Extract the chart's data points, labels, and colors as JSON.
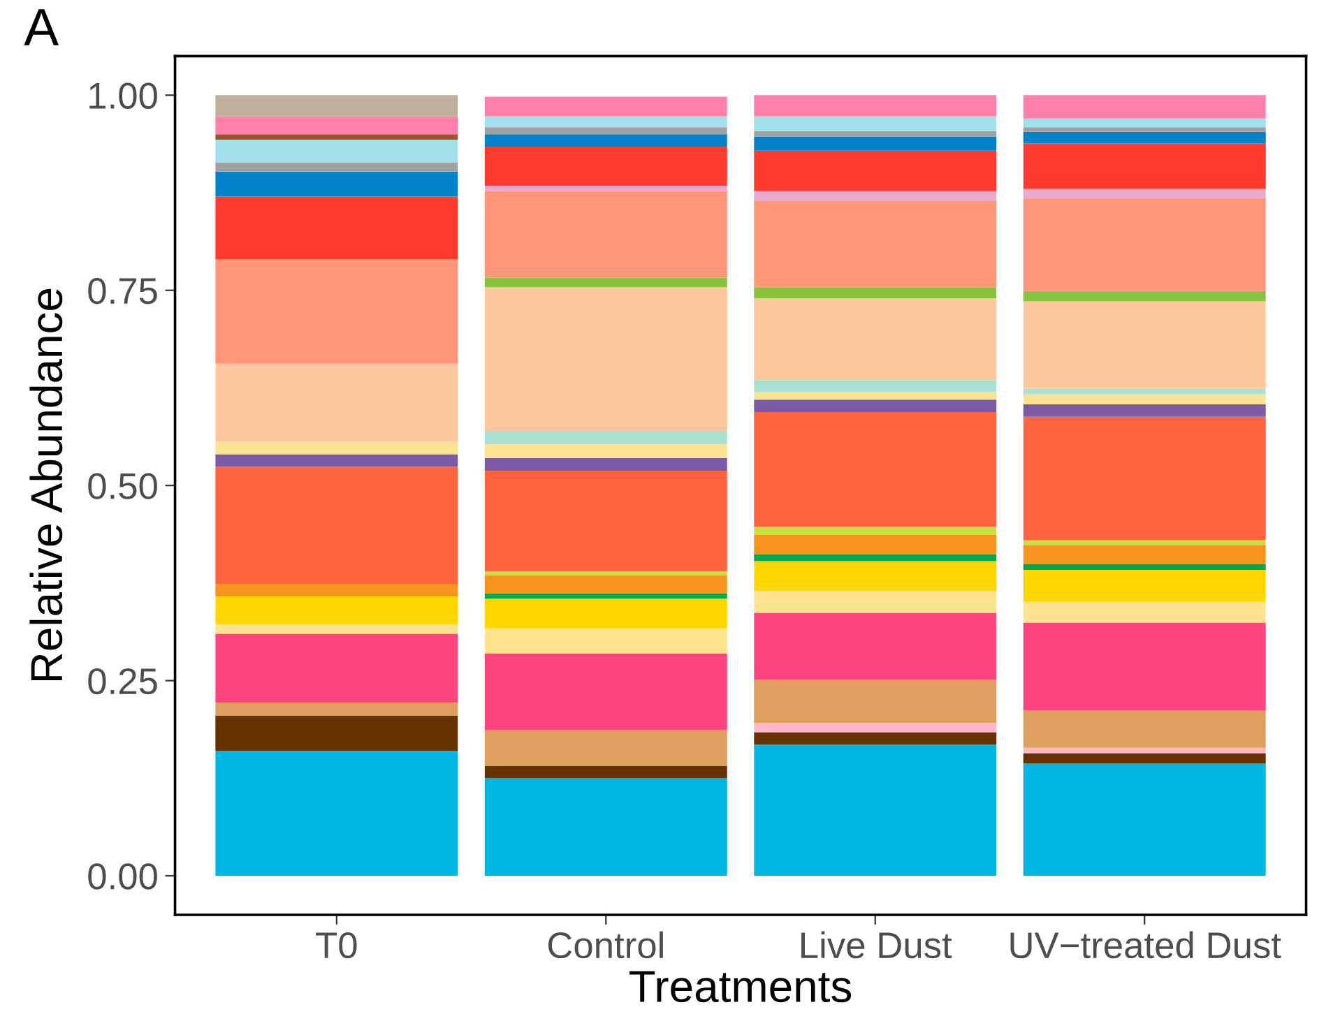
{
  "chart_data": {
    "type": "bar",
    "stacked": true,
    "title": "A",
    "xlabel": "Treatments",
    "ylabel": "Relative Abundance",
    "categories": [
      "T0",
      "Control",
      "Live Dust",
      "UV−treated Dust"
    ],
    "ylim": [
      -0.05,
      1.05
    ],
    "yticks": [
      {
        "value": 0,
        "label": "0.00"
      },
      {
        "value": 0.25,
        "label": "0.25"
      },
      {
        "value": 0.5,
        "label": "0.50"
      },
      {
        "value": 0.75,
        "label": "0.75"
      },
      {
        "value": 1,
        "label": "1.00"
      }
    ],
    "grid": false,
    "legend": false,
    "series": [
      {
        "color": "#00b5e2",
        "values": [
          0.16,
          0.125,
          0.168,
          0.144
        ]
      },
      {
        "color": "#663300",
        "values": [
          0.045,
          0.016,
          0.016,
          0.013
        ]
      },
      {
        "color": "#ffb6c8",
        "values": [
          null,
          null,
          0.012,
          0.007
        ]
      },
      {
        "color": "#dd9e5e",
        "values": [
          0.017,
          0.046,
          0.055,
          0.048
        ]
      },
      {
        "color": "#ff4580",
        "values": [
          0.088,
          0.098,
          0.086,
          0.112
        ]
      },
      {
        "color": "#fde48f",
        "values": [
          0.012,
          0.032,
          0.028,
          0.027
        ]
      },
      {
        "color": "#ffd700",
        "values": [
          0.036,
          0.038,
          0.038,
          0.041
        ]
      },
      {
        "color": "#00a651",
        "values": [
          null,
          0.007,
          0.009,
          0.007
        ]
      },
      {
        "color": "#f7941d",
        "values": [
          0.016,
          0.023,
          0.025,
          0.025
        ]
      },
      {
        "color": "#c8e03c",
        "values": [
          null,
          0.005,
          0.01,
          0.006
        ]
      },
      {
        "color": "#ff6340",
        "values": [
          0.15,
          0.129,
          0.147,
          0.158
        ]
      },
      {
        "color": "#7b5aa6",
        "values": [
          0.016,
          0.016,
          0.016,
          0.016
        ]
      },
      {
        "color": "#fbe290",
        "values": [
          0.016,
          0.018,
          0.01,
          0.013
        ]
      },
      {
        "color": "#a8e0d4",
        "values": [
          null,
          0.017,
          0.015,
          0.007
        ]
      },
      {
        "color": "#fec79e",
        "values": [
          0.1,
          0.184,
          0.105,
          0.112
        ]
      },
      {
        "color": "#86c23e",
        "values": [
          null,
          0.012,
          0.014,
          0.013
        ]
      },
      {
        "color": "#ff9678",
        "values": [
          0.134,
          0.111,
          0.111,
          0.119
        ]
      },
      {
        "color": "#e8a9d0",
        "values": [
          null,
          0.007,
          0.012,
          0.012
        ]
      },
      {
        "color": "#ff3a2e",
        "values": [
          0.08,
          0.05,
          0.052,
          0.058
        ]
      },
      {
        "color": "#0081c8",
        "values": [
          0.032,
          0.016,
          0.018,
          0.015
        ]
      },
      {
        "color": "#a0a0a0",
        "values": [
          0.012,
          0.009,
          0.007,
          0.006
        ]
      },
      {
        "color": "#a0e0ea",
        "values": [
          0.029,
          0.014,
          0.019,
          0.011
        ]
      },
      {
        "color": "#a0522d",
        "values": [
          0.007,
          null,
          null,
          null
        ]
      },
      {
        "color": "#ff7fa8",
        "values": [
          0.023,
          0.025,
          0.027,
          0.03
        ]
      },
      {
        "color": "#c0ad9a",
        "values": [
          0.027,
          null,
          null,
          null
        ]
      }
    ]
  }
}
